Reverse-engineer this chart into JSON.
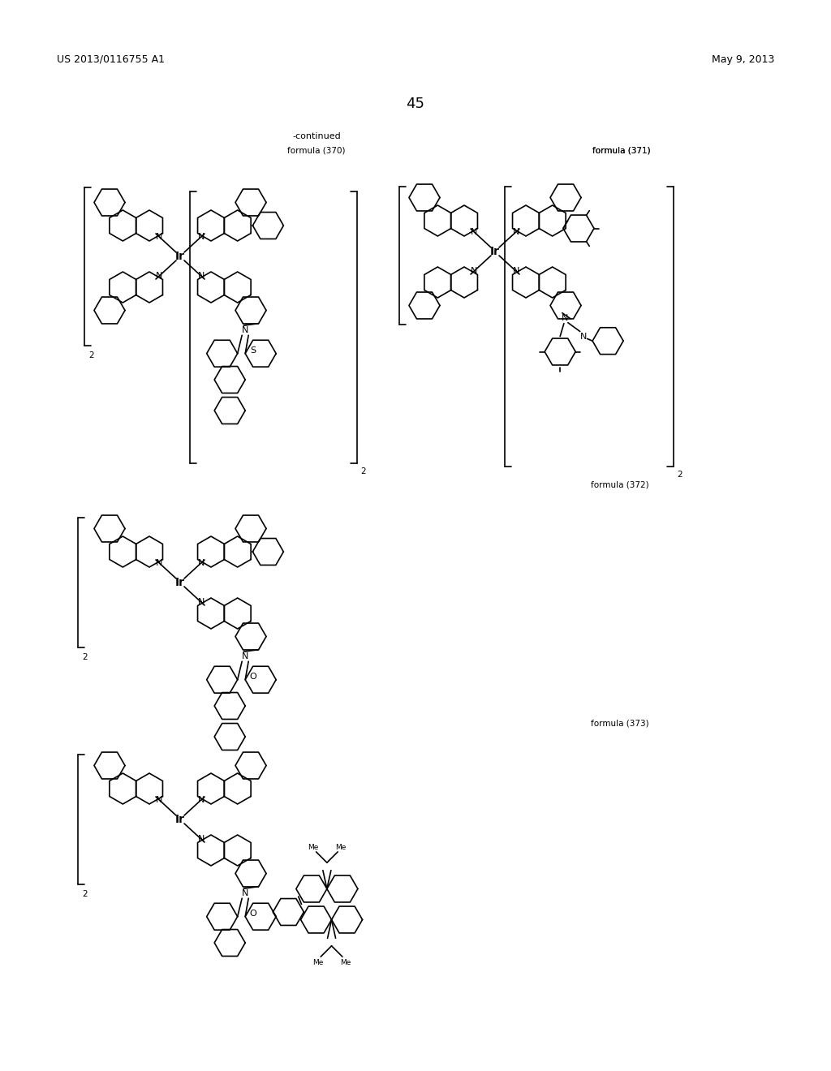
{
  "page_header_left": "US 2013/0116755 A1",
  "page_header_right": "May 9, 2013",
  "page_number": "45",
  "continued_text": "-continued",
  "formula_labels": [
    "formula (370)",
    "formula (371)",
    "formula (372)",
    "formula (373)"
  ],
  "background_color": "#ffffff",
  "text_color": "#000000",
  "line_color": "#000000"
}
